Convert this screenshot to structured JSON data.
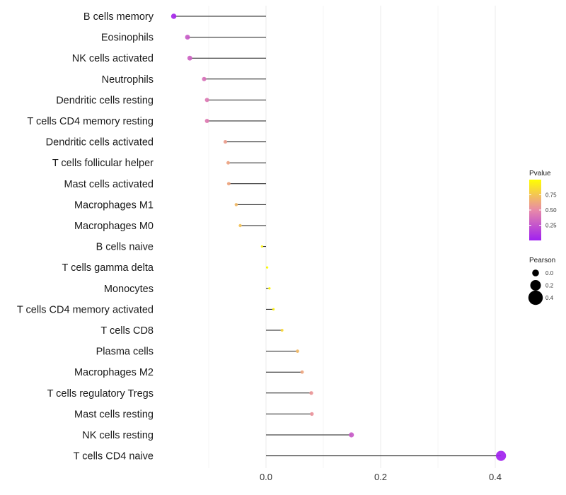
{
  "chart_data": {
    "type": "lollipop",
    "title": "",
    "xlabel": "",
    "ylabel": "",
    "xlim": [
      -0.23,
      0.43
    ],
    "x_ticks": [
      0.0,
      0.2,
      0.4
    ],
    "x_tick_labels": [
      "0.0",
      "0.2",
      "0.4"
    ],
    "grid": true,
    "categories": [
      "B cells memory",
      "Eosinophils",
      "NK cells activated",
      "Neutrophils",
      "Dendritic cells resting",
      "T cells CD4 memory resting",
      "Dendritic cells activated",
      "T cells follicular helper",
      "Mast cells activated",
      "Macrophages M1",
      "Macrophages M0",
      "B cells naive",
      "T cells gamma delta",
      "Monocytes",
      "T cells CD4 memory activated",
      "T cells CD8",
      "Plasma cells",
      "Macrophages M2",
      "T cells regulatory  Tregs ",
      "Mast cells resting",
      "NK cells resting",
      "T cells CD4 naive"
    ],
    "values": [
      -0.161,
      -0.137,
      -0.133,
      -0.108,
      -0.103,
      -0.103,
      -0.071,
      -0.066,
      -0.065,
      -0.052,
      -0.045,
      -0.007,
      0.002,
      0.006,
      0.013,
      0.028,
      0.055,
      0.063,
      0.079,
      0.08,
      0.149,
      0.41
    ],
    "pvalues": [
      0.04,
      0.28,
      0.31,
      0.38,
      0.42,
      0.43,
      0.58,
      0.61,
      0.62,
      0.7,
      0.74,
      0.95,
      0.99,
      0.98,
      0.94,
      0.83,
      0.7,
      0.62,
      0.55,
      0.54,
      0.28,
      0.01
    ],
    "legend": {
      "color": {
        "title": "Pvalue",
        "ticks": [
          0.25,
          0.5,
          0.75
        ],
        "tick_labels": [
          "0.25",
          "0.50",
          "0.75"
        ],
        "range": [
          0,
          1
        ],
        "low_color": "#a020f0",
        "mid_color": "#e88aa8",
        "high_color": "#ffff00"
      },
      "size": {
        "title": "Pearson",
        "values": [
          0.0,
          0.2,
          0.4
        ],
        "labels": [
          "0.0",
          "0.2",
          "0.4"
        ]
      },
      "position": "right"
    }
  }
}
